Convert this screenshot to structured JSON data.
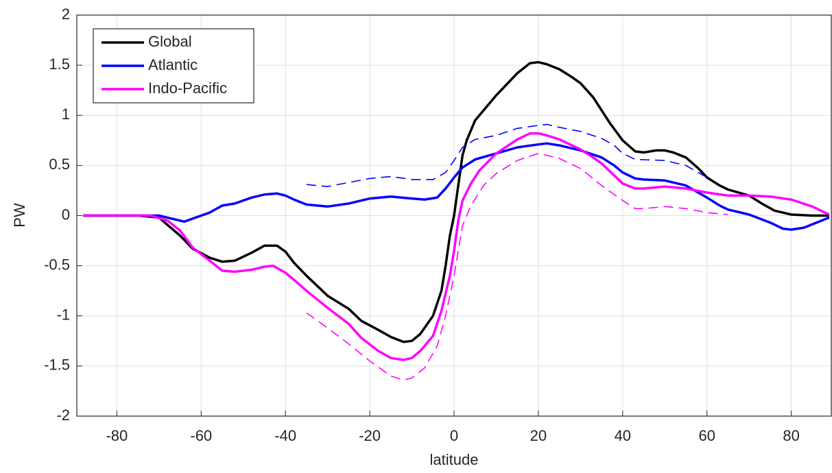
{
  "chart_data": {
    "type": "line",
    "x_label": "latitude",
    "y_label": "PW",
    "xlim": [
      -89.5,
      89.5
    ],
    "ylim": [
      -2,
      2
    ],
    "xticks": [
      -80,
      -60,
      -40,
      -20,
      0,
      20,
      40,
      60,
      80
    ],
    "yticks": [
      -2,
      -1.5,
      -1,
      -0.5,
      0,
      0.5,
      1,
      1.5,
      2
    ],
    "grid": true,
    "legend": "upper left",
    "series": [
      {
        "name": "Global",
        "color": "#000000",
        "dashed": false,
        "x": [
          -88,
          -75,
          -70,
          -65,
          -62,
          -58,
          -55,
          -52,
          -48,
          -45,
          -42,
          -40,
          -38,
          -35,
          -32,
          -30,
          -25,
          -22,
          -18,
          -15,
          -12,
          -10,
          -8,
          -5,
          -3,
          -2,
          -1,
          0,
          1,
          2,
          3,
          5,
          8,
          10,
          15,
          18,
          20,
          22,
          25,
          28,
          30,
          33,
          35,
          37,
          40,
          43,
          45,
          48,
          50,
          52,
          55,
          58,
          60,
          63,
          65,
          70,
          73,
          76,
          80,
          85,
          89
        ],
        "values": [
          0,
          0,
          -0.02,
          -0.2,
          -0.33,
          -0.42,
          -0.46,
          -0.45,
          -0.37,
          -0.3,
          -0.3,
          -0.36,
          -0.47,
          -0.6,
          -0.72,
          -0.8,
          -0.93,
          -1.05,
          -1.14,
          -1.21,
          -1.26,
          -1.25,
          -1.18,
          -1.0,
          -0.75,
          -0.5,
          -0.2,
          0,
          0.3,
          0.6,
          0.75,
          0.95,
          1.1,
          1.2,
          1.42,
          1.52,
          1.53,
          1.51,
          1.46,
          1.38,
          1.32,
          1.18,
          1.05,
          0.92,
          0.75,
          0.64,
          0.63,
          0.65,
          0.65,
          0.63,
          0.58,
          0.47,
          0.38,
          0.3,
          0.26,
          0.2,
          0.12,
          0.05,
          0.01,
          0,
          0
        ]
      },
      {
        "name": "Atlantic",
        "color": "#0000ff",
        "dashed": false,
        "x": [
          -88,
          -70,
          -67,
          -64,
          -62,
          -58,
          -55,
          -52,
          -48,
          -45,
          -42,
          -40,
          -38,
          -35,
          -30,
          -25,
          -20,
          -15,
          -10,
          -7,
          -4,
          -2,
          0,
          2,
          5,
          10,
          15,
          20,
          22,
          25,
          30,
          35,
          38,
          40,
          43,
          45,
          50,
          55,
          60,
          63,
          65,
          70,
          75,
          78,
          80,
          83,
          86,
          89
        ],
        "values": [
          0,
          0,
          -0.03,
          -0.06,
          -0.03,
          0.03,
          0.1,
          0.12,
          0.18,
          0.21,
          0.22,
          0.2,
          0.16,
          0.11,
          0.09,
          0.12,
          0.17,
          0.19,
          0.17,
          0.16,
          0.18,
          0.27,
          0.38,
          0.48,
          0.56,
          0.62,
          0.68,
          0.71,
          0.72,
          0.7,
          0.65,
          0.58,
          0.5,
          0.43,
          0.37,
          0.36,
          0.35,
          0.3,
          0.18,
          0.1,
          0.06,
          0.01,
          -0.07,
          -0.13,
          -0.14,
          -0.12,
          -0.07,
          -0.02
        ]
      },
      {
        "name": "Indo-Pacific",
        "color": "#ff00ff",
        "dashed": false,
        "x": [
          -88,
          -72,
          -68,
          -65,
          -62,
          -58,
          -55,
          -52,
          -48,
          -45,
          -43,
          -40,
          -38,
          -35,
          -30,
          -25,
          -22,
          -18,
          -15,
          -12,
          -10,
          -8,
          -5,
          -3,
          -1,
          0,
          1,
          2,
          4,
          6,
          10,
          15,
          18,
          20,
          22,
          25,
          30,
          33,
          35,
          37,
          40,
          43,
          45,
          50,
          55,
          60,
          65,
          70,
          75,
          80,
          85,
          89
        ],
        "values": [
          0,
          0,
          -0.05,
          -0.15,
          -0.32,
          -0.45,
          -0.55,
          -0.56,
          -0.54,
          -0.51,
          -0.5,
          -0.57,
          -0.64,
          -0.75,
          -0.92,
          -1.08,
          -1.22,
          -1.35,
          -1.42,
          -1.44,
          -1.42,
          -1.35,
          -1.2,
          -0.95,
          -0.6,
          -0.35,
          -0.05,
          0.15,
          0.32,
          0.45,
          0.62,
          0.76,
          0.82,
          0.82,
          0.8,
          0.76,
          0.66,
          0.58,
          0.52,
          0.44,
          0.32,
          0.27,
          0.27,
          0.29,
          0.27,
          0.23,
          0.2,
          0.2,
          0.19,
          0.16,
          0.09,
          0.01
        ]
      },
      {
        "color": "#0000ff",
        "dashed": true,
        "x": [
          -35,
          -30,
          -25,
          -20,
          -15,
          -10,
          -5,
          -2,
          0,
          2,
          5,
          10,
          15,
          20,
          22,
          25,
          30,
          35,
          38,
          40,
          43,
          50,
          55,
          60
        ],
        "values": [
          0.31,
          0.29,
          0.33,
          0.37,
          0.39,
          0.36,
          0.36,
          0.43,
          0.55,
          0.68,
          0.76,
          0.8,
          0.87,
          0.9,
          0.91,
          0.88,
          0.84,
          0.77,
          0.7,
          0.62,
          0.56,
          0.55,
          0.5,
          0.38
        ]
      },
      {
        "color": "#ff00ff",
        "dashed": true,
        "x": [
          -35,
          -30,
          -25,
          -20,
          -15,
          -12,
          -10,
          -7,
          -4,
          -2,
          0,
          2,
          4,
          7,
          10,
          15,
          20,
          25,
          30,
          35,
          40,
          43,
          45,
          50,
          55,
          60,
          65
        ],
        "values": [
          -0.97,
          -1.12,
          -1.28,
          -1.45,
          -1.6,
          -1.64,
          -1.62,
          -1.52,
          -1.3,
          -1.0,
          -0.6,
          -0.1,
          0.1,
          0.3,
          0.42,
          0.55,
          0.62,
          0.57,
          0.47,
          0.3,
          0.15,
          0.07,
          0.07,
          0.09,
          0.07,
          0.03,
          0.01
        ]
      }
    ]
  }
}
